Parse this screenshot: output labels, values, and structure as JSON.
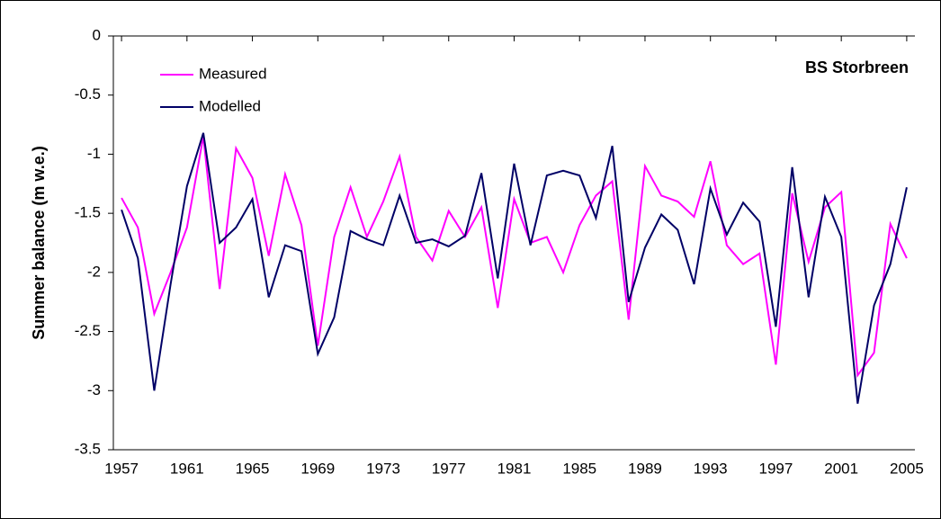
{
  "chart_data": {
    "type": "line",
    "title": "BS Storbreen",
    "y_label": "Summer balance (m w.e.)",
    "x": [
      1957,
      1958,
      1959,
      1960,
      1961,
      1962,
      1963,
      1964,
      1965,
      1966,
      1967,
      1968,
      1969,
      1970,
      1971,
      1972,
      1973,
      1974,
      1975,
      1976,
      1977,
      1978,
      1979,
      1980,
      1981,
      1982,
      1983,
      1984,
      1985,
      1986,
      1987,
      1988,
      1989,
      1990,
      1991,
      1992,
      1993,
      1994,
      1995,
      1996,
      1997,
      1998,
      1999,
      2000,
      2001,
      2002,
      2003,
      2004,
      2005
    ],
    "series": [
      {
        "name": "Measured",
        "color": "#ff00ff",
        "values": [
          -1.37,
          -1.62,
          -2.35,
          -2.0,
          -1.62,
          -0.85,
          -2.14,
          -0.95,
          -1.2,
          -1.86,
          -1.17,
          -1.6,
          -2.62,
          -1.7,
          -1.28,
          -1.7,
          -1.4,
          -1.02,
          -1.7,
          -1.9,
          -1.48,
          -1.7,
          -1.45,
          -2.3,
          -1.38,
          -1.75,
          -1.7,
          -2.0,
          -1.6,
          -1.35,
          -1.23,
          -2.4,
          -1.1,
          -1.35,
          -1.4,
          -1.53,
          -1.06,
          -1.77,
          -1.93,
          -1.84,
          -2.78,
          -1.33,
          -1.91,
          -1.45,
          -1.32,
          -2.87,
          -2.68,
          -1.59,
          -1.88
        ]
      },
      {
        "name": "Modelled",
        "color": "#000066",
        "values": [
          -1.47,
          -1.88,
          -3.0,
          -2.1,
          -1.27,
          -0.82,
          -1.75,
          -1.62,
          -1.38,
          -2.21,
          -1.77,
          -1.82,
          -2.69,
          -2.38,
          -1.65,
          -1.72,
          -1.77,
          -1.35,
          -1.75,
          -1.72,
          -1.78,
          -1.69,
          -1.16,
          -2.05,
          -1.08,
          -1.77,
          -1.18,
          -1.14,
          -1.18,
          -1.54,
          -0.93,
          -2.25,
          -1.79,
          -1.51,
          -1.64,
          -2.1,
          -1.29,
          -1.68,
          -1.41,
          -1.57,
          -2.46,
          -1.11,
          -2.21,
          -1.36,
          -1.7,
          -3.11,
          -2.28,
          -1.93,
          -1.28
        ]
      }
    ],
    "xlim": [
      1956.5,
      2005.5
    ],
    "xticks": [
      1957,
      1961,
      1965,
      1969,
      1973,
      1977,
      1981,
      1985,
      1989,
      1993,
      1997,
      2001,
      2005
    ],
    "ylim": [
      -3.5,
      0
    ],
    "yticks": [
      0,
      -0.5,
      -1,
      -1.5,
      -2,
      -2.5,
      -3,
      -3.5
    ],
    "legend": "upper-left"
  }
}
